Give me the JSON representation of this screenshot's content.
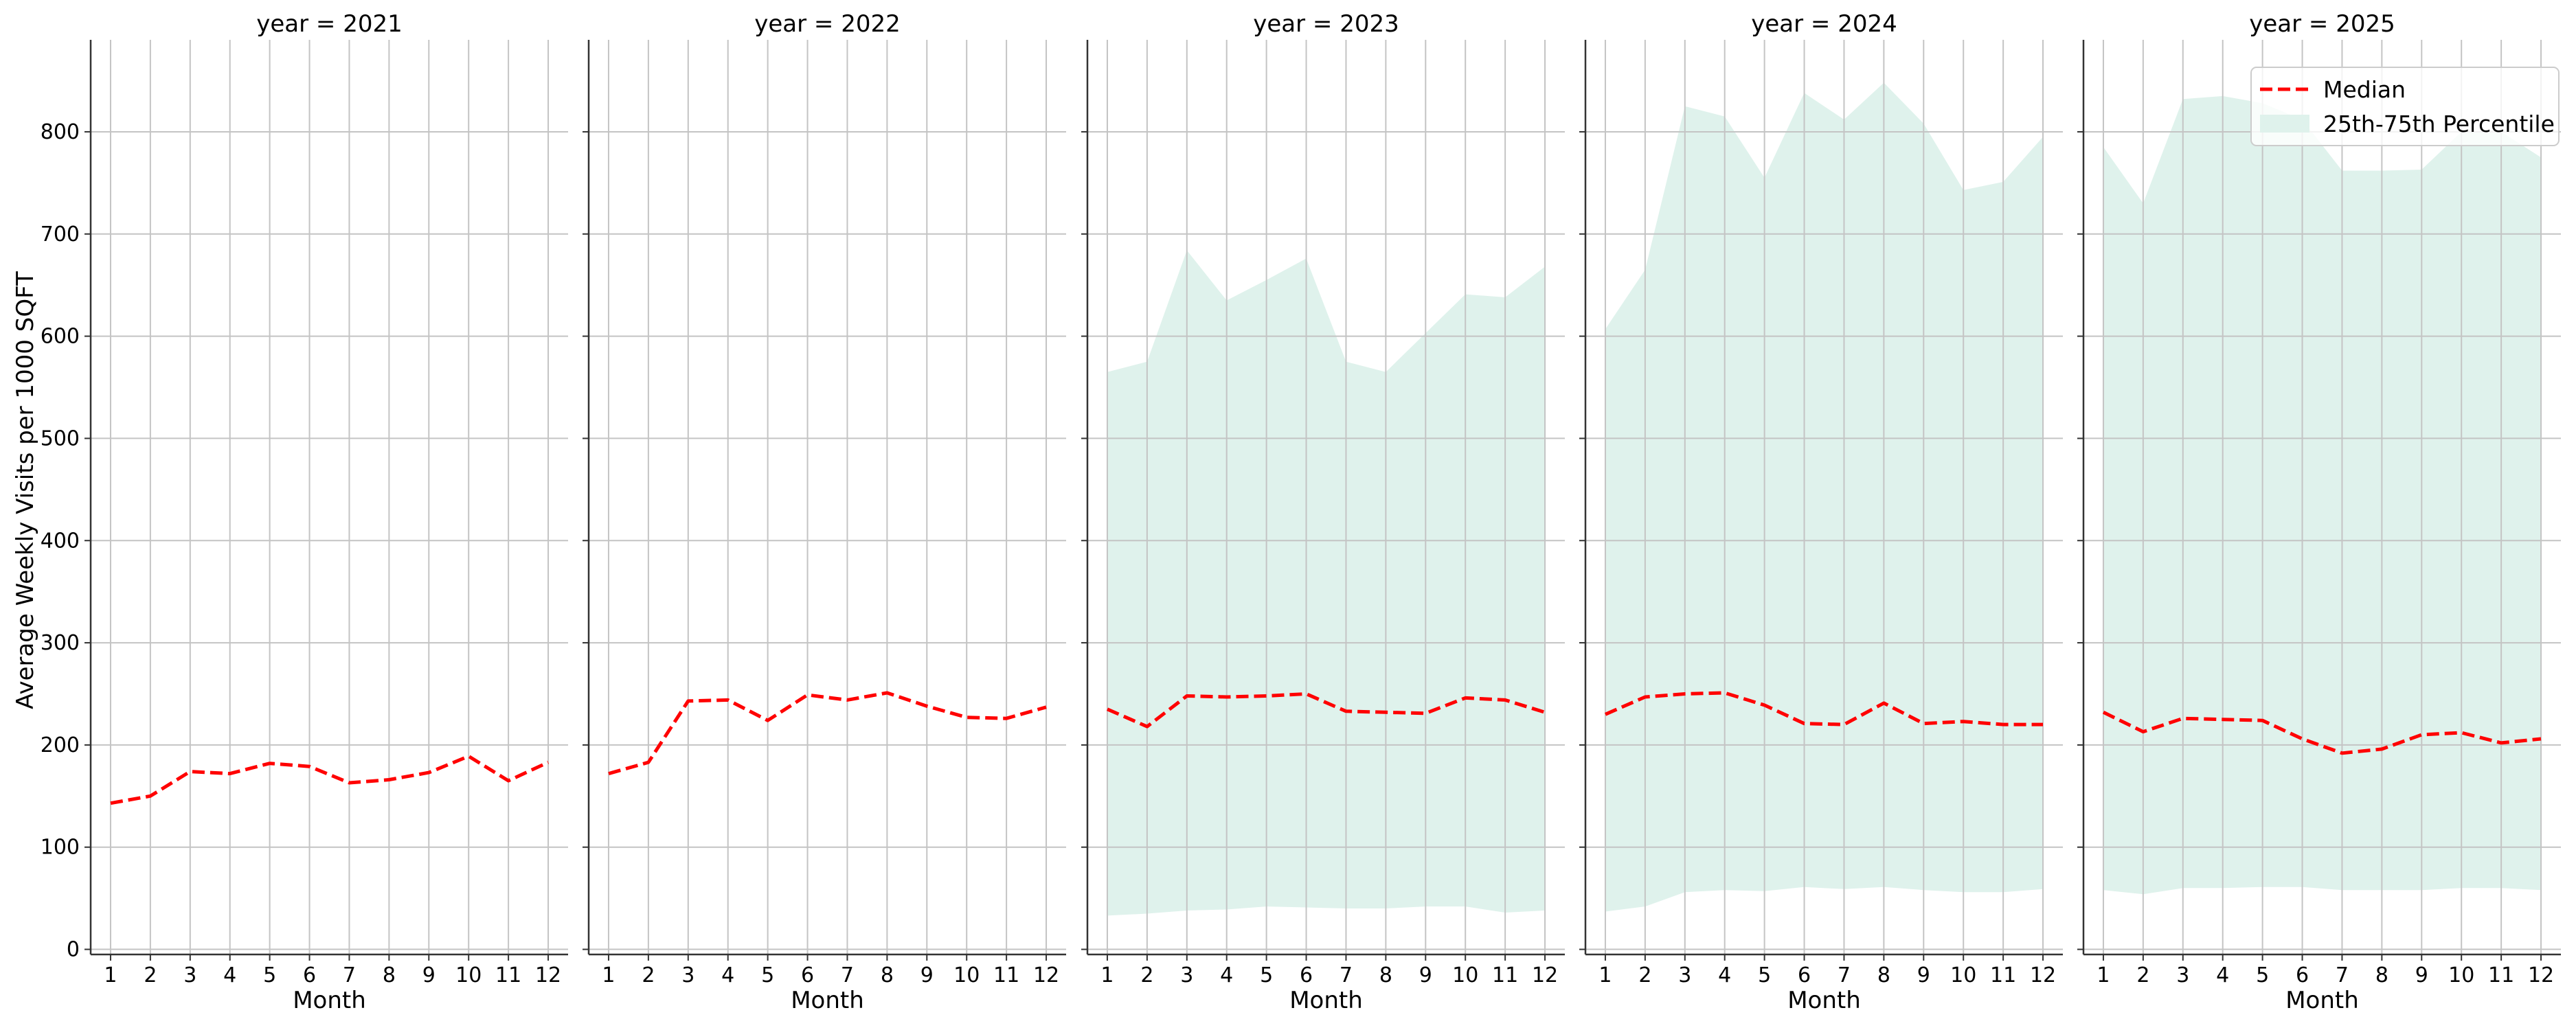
{
  "ylabel": "Average Weekly Visits per 1000 SQFT",
  "xlabel": "Month",
  "legend": {
    "placement": "top-right",
    "median_label": "Median",
    "band_label": "25th-75th Percentile"
  },
  "colors": {
    "median": "#ff0000",
    "band": "#dff2ec",
    "grid": "#c4c4c4",
    "axis": "#333333"
  },
  "chart_data": {
    "type": "line",
    "ylim": [
      -5,
      890
    ],
    "xlim": [
      0.5,
      12.5
    ],
    "yticks": [
      0,
      100,
      200,
      300,
      400,
      500,
      600,
      700,
      800
    ],
    "xticks": [
      1,
      2,
      3,
      4,
      5,
      6,
      7,
      8,
      9,
      10,
      11,
      12
    ],
    "grid": true,
    "panels": [
      {
        "title": "year = 2021",
        "median": [
          143,
          150,
          174,
          172,
          182,
          179,
          163,
          166,
          173,
          189,
          165,
          183
        ],
        "p25": null,
        "p75": null
      },
      {
        "title": "year = 2022",
        "median": [
          172,
          183,
          243,
          244,
          224,
          249,
          244,
          251,
          238,
          227,
          226,
          237
        ],
        "p25": null,
        "p75": null
      },
      {
        "title": "year = 2023",
        "median": [
          235,
          218,
          248,
          247,
          248,
          250,
          233,
          232,
          231,
          246,
          244,
          232
        ],
        "p25": [
          33,
          35,
          38,
          39,
          42,
          41,
          40,
          40,
          42,
          42,
          36,
          38
        ],
        "p75": [
          565,
          575,
          684,
          635,
          655,
          676,
          575,
          565,
          603,
          641,
          638,
          668
        ]
      },
      {
        "title": "year = 2024",
        "median": [
          230,
          247,
          250,
          251,
          239,
          221,
          220,
          241,
          221,
          223,
          220,
          220
        ],
        "p25": [
          37,
          42,
          56,
          58,
          57,
          61,
          59,
          61,
          58,
          56,
          56,
          59
        ],
        "p75": [
          607,
          665,
          825,
          815,
          755,
          838,
          812,
          848,
          808,
          743,
          751,
          795
        ]
      },
      {
        "title": "year = 2025",
        "median": [
          232,
          213,
          226,
          225,
          224,
          206,
          192,
          196,
          210,
          212,
          202,
          206
        ],
        "p25": [
          58,
          54,
          60,
          60,
          61,
          61,
          58,
          58,
          58,
          60,
          60,
          58
        ],
        "p75": [
          785,
          730,
          832,
          835,
          828,
          812,
          762,
          762,
          763,
          800,
          800,
          775
        ]
      }
    ]
  }
}
